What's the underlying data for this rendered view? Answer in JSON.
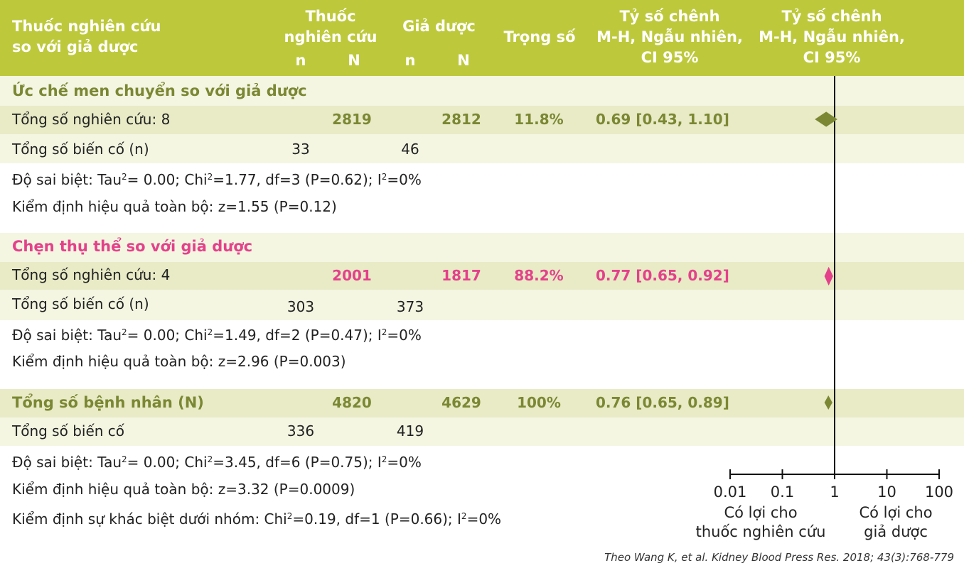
{
  "header": {
    "col1": [
      "Thuốc nghiên cứu",
      "so với giả dược"
    ],
    "col_drug": [
      "Thuốc",
      "nghiên cứu"
    ],
    "col_placebo": "Giả dược",
    "n": "n",
    "N": "N",
    "col_weight": "Trọng số",
    "col_or_text": [
      "Tỷ số chênh",
      "M-H, Ngẫu nhiên,",
      "CI 95%"
    ],
    "col_or_plot": [
      "Tỷ số chênh",
      "M-H, Ngẫu nhiên,",
      "CI 95%"
    ]
  },
  "groups": [
    {
      "title": "Ức chế men chuyển so với giả dược",
      "total_label": "Tổng số nghiên cứu: 8",
      "drug_N": "2819",
      "placebo_N": "2812",
      "weight": "11.8%",
      "or_text": "0.69 [0.43, 1.10]",
      "events_label": "Tổng số biến cố (n)",
      "drug_n": "33",
      "placebo_n": "46",
      "heterogeneity": {
        "pre": "Độ sai biệt: Tau",
        "mid1": "= 0.00; Chi",
        "mid2": "=1.77, df=3 (P=0.62); I",
        "post": "=0%"
      },
      "overall": "Kiểm định hiệu quả toàn bộ: z=1.55 (P=0.12)"
    },
    {
      "title": "Chẹn thụ thể so với giả dược",
      "total_label": "Tổng số nghiên cứu: 4",
      "drug_N": "2001",
      "placebo_N": "1817",
      "weight": "88.2%",
      "or_text": "0.77 [0.65, 0.92]",
      "events_label": "Tổng số biến cố (n)",
      "drug_n": "303",
      "placebo_n": "373",
      "heterogeneity": {
        "pre": "Độ sai biệt: Tau",
        "mid1": "= 0.00; Chi",
        "mid2": "=1.49, df=2 (P=0.47); I",
        "post": "=0%"
      },
      "overall": "Kiểm định hiệu quả toàn bộ: z=2.96 (P=0.003)"
    }
  ],
  "total": {
    "title": "Tổng số bệnh nhân (N)",
    "drug_N": "4820",
    "placebo_N": "4629",
    "weight": "100%",
    "or_text": "0.76 [0.65, 0.89]",
    "events_label": "Tổng số biến cố",
    "drug_n": "336",
    "placebo_n": "419",
    "heterogeneity": {
      "pre": "Độ sai biệt: Tau",
      "mid1": "= 0.00; Chi",
      "mid2": "=3.45, df=6 (P=0.75); I",
      "post": "=0%"
    },
    "overall": "Kiểm định hiệu quả toàn bộ: z=3.32 (P=0.0009)",
    "subgroup": {
      "pre": "Kiểm định sự khác biệt dưới nhóm: Chi",
      "mid": "=0.19, df=1 (P=0.66); I",
      "post": "=0%"
    }
  },
  "superscript_2": "2",
  "axis": {
    "favours_left": [
      "Có lợi cho",
      "thuốc nghiên cứu"
    ],
    "favours_right": [
      "Có lợi cho",
      "giả dược"
    ]
  },
  "source": "Theo Wang K, et al. Kidney Blood Press Res. 2018; 43(3):768-779",
  "colors": {
    "header": "#bdc93b",
    "olive": "#7c8733",
    "pink": "#e4418a",
    "band_dark": "#e8ebc6",
    "band_light": "#f4f6e2"
  },
  "chart_data": {
    "type": "forest",
    "x_scale": "log",
    "xlim": [
      0.01,
      100
    ],
    "ticks": [
      0.01,
      0.1,
      1,
      10,
      100
    ],
    "tick_labels": [
      "0.01",
      "0.1",
      "1",
      "10",
      "100"
    ],
    "reference_line": 1,
    "estimates": [
      {
        "label": "Ức chế men chuyển so với giả dược",
        "or": 0.69,
        "ci": [
          0.43,
          1.1
        ],
        "weight": 11.8,
        "color": "#7c8733"
      },
      {
        "label": "Chẹn thụ thể so với giả dược",
        "or": 0.77,
        "ci": [
          0.65,
          0.92
        ],
        "weight": 88.2,
        "color": "#e4418a"
      },
      {
        "label": "Tổng số bệnh nhân (N)",
        "or": 0.76,
        "ci": [
          0.65,
          0.89
        ],
        "weight": 100,
        "color": "#7c8733"
      }
    ]
  }
}
